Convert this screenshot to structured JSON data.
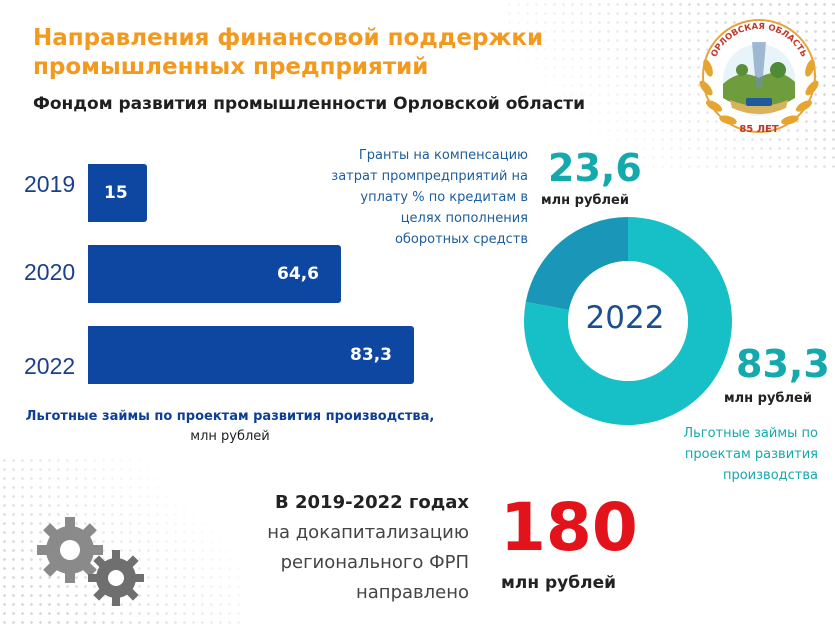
{
  "header": {
    "title_line1": "Направления финансовой поддержки",
    "title_line2": "промышленных предприятий",
    "subtitle": "Фондом развития промышленности Орловской области"
  },
  "bar_chart": {
    "categories": [
      "2019",
      "2020",
      "2022"
    ],
    "values": [
      15,
      64.6,
      83.3
    ],
    "labels": [
      "15",
      "64,6",
      "83,3"
    ],
    "caption_bold": "Льготные займы по проектам развития производства,",
    "caption_unit": "млн рублей",
    "color": "#0d47a1"
  },
  "donut": {
    "center_label": "2022",
    "segments": [
      {
        "value": 23.6,
        "color": "#1a97b8"
      },
      {
        "value": 83.3,
        "color": "#17bfc7"
      }
    ],
    "grant": {
      "value": "23,6",
      "unit": "млн рублей",
      "text": "Гранты на компенсацию затрат промпредприятий на уплату % по кредитам в целях пополнения оборотных средств"
    },
    "loan": {
      "value": "83,3",
      "unit": "млн рублей",
      "text": "Льготные займы по проектам развития производства"
    }
  },
  "summary": {
    "bold": "В 2019-2022 годах",
    "rest": "на докапитализацию регионального ФРП направлено",
    "total": "180",
    "total_unit": "млн рублей"
  },
  "emblem": {
    "top_text": "ОРЛОВСКАЯ ОБЛАСТЬ",
    "bottom_text": "85 ЛЕТ"
  },
  "colors": {
    "accent_orange": "#f39a1e",
    "navy": "#0d47a1",
    "teal": "#14a9ad",
    "red": "#e3131b"
  },
  "icons": [
    "gears-icon",
    "emblem-logo"
  ]
}
